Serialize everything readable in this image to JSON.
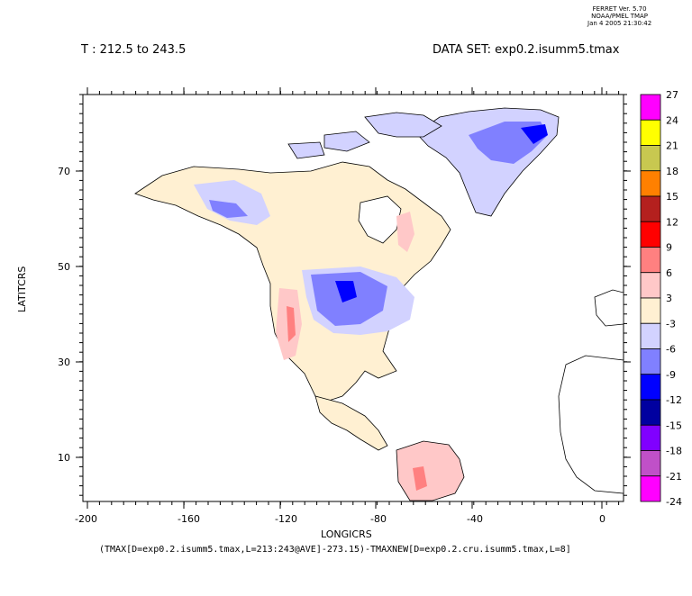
{
  "stamp": {
    "line1": "FERRET Ver. 5.70",
    "line2": "NOAA/PMEL TMAP",
    "line3": "Jan  4 2005 21:30:42"
  },
  "header": {
    "time_range": "T : 212.5 to 243.5",
    "dataset": "DATA SET: exp0.2.isumm5.tmax"
  },
  "axes": {
    "xlabel": "LONGICRS",
    "ylabel": "LATITCRS",
    "x_ticks": [
      "-200",
      "-160",
      "-120",
      "-80",
      "-40",
      "0"
    ],
    "y_ticks": [
      "70",
      "50",
      "30",
      "10"
    ]
  },
  "footer": {
    "expression": "(TMAX[D=exp0.2.isumm5.tmax,L=213:243@AVE]-273.15)-TMAXNEW[D=exp0.2.cru.isumm5.tmax,L=8]"
  },
  "colorbar": {
    "labels": [
      "27",
      "24",
      "21",
      "18",
      "15",
      "12",
      "9",
      "6",
      "3",
      "-3",
      "-6",
      "-9",
      "-12",
      "-15",
      "-18",
      "-21",
      "-24"
    ],
    "colors": [
      "#ff00ff",
      "#ffff00",
      "#c8c850",
      "#ff8000",
      "#b4201e",
      "#ff0000",
      "#ff8080",
      "#ffc8c8",
      "#fff0d2",
      "#d2d2ff",
      "#8080ff",
      "#0000ff",
      "#0000a0",
      "#8000ff",
      "#c050c8",
      "#ff00ff"
    ]
  },
  "map": {
    "colors": {
      "land_neutral": "#fff0d2",
      "light_blue": "#d2d2ff",
      "mid_blue": "#8080ff",
      "dark_blue": "#0000ff",
      "pink": "#ffc8c8",
      "red": "#ff8080"
    }
  }
}
